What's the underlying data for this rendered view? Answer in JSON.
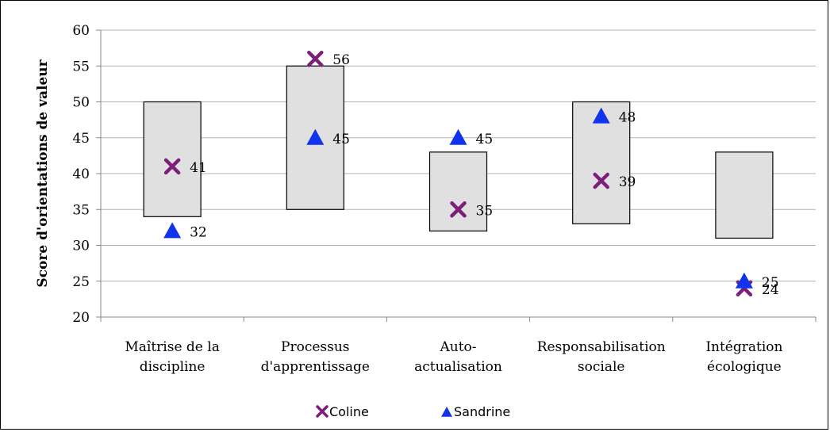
{
  "chart_data": {
    "type": "scatter",
    "ylabel": "Score d'orientations de valeur",
    "ylim": [
      20,
      60
    ],
    "yticks": [
      20,
      25,
      30,
      35,
      40,
      45,
      50,
      55,
      60
    ],
    "grid": true,
    "legend_position": "bottom",
    "categories": [
      [
        "Maîtrise de la",
        "discipline"
      ],
      [
        "Processus",
        "d'apprentissage"
      ],
      [
        "Auto-",
        "actualisation"
      ],
      [
        "Responsabilisation",
        "sociale"
      ],
      [
        "Intégration",
        "écologique"
      ]
    ],
    "ranges": [
      {
        "low": 34,
        "high": 50
      },
      {
        "low": 35,
        "high": 55
      },
      {
        "low": 32,
        "high": 43
      },
      {
        "low": 33,
        "high": 50
      },
      {
        "low": 31,
        "high": 43
      }
    ],
    "series": [
      {
        "name": "Coline",
        "marker": "x",
        "color": "#7B1F7B",
        "values": [
          41,
          56,
          35,
          39,
          24
        ]
      },
      {
        "name": "Sandrine",
        "marker": "triangle",
        "color": "#1133EE",
        "values": [
          32,
          45,
          45,
          48,
          25
        ]
      }
    ]
  }
}
